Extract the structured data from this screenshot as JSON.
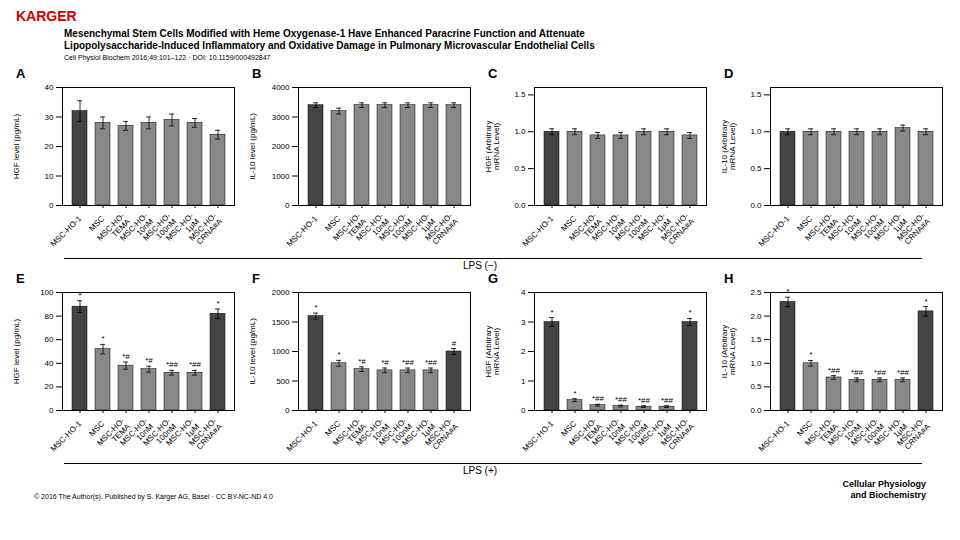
{
  "title": "Mesenchymal Stem Cells Modified with Heme Oxygenase-1 Have Enhanced Paracrine Function and Attenuate\nLipopolysaccharide-Induced Inflammatory and Oxidative Damage in Pulmonary Microvascular Endothelial Cells",
  "subtitle": "Cell Physiol Biochem 2016;49:101–122 · DOI: 10.1159/000492847",
  "annotations": [
    {
      "text": "KARGER",
      "color": "#cc0000"
    },
    {
      "text": "© 2016 The Author(s). Published by S. Karger AG, Basel · CC BY-NC-ND 4.0"
    },
    {
      "text": "Cellular Physiology\nand Biochemistry"
    },
    {
      "text": "LPS (−)"
    },
    {
      "text": "LPS (+)"
    }
  ],
  "chart_data": [
    {
      "type": "bar",
      "title": "A",
      "categories": [
        "MSC-HO-1",
        "MSC",
        "MSC-HO-\nTEMA",
        "MSC-HO-\n10nM",
        "MSC-HO-\n100nM",
        "MSC-HO-\n1μM",
        "MSC-HO-\nCRNA#A"
      ],
      "values": [
        32,
        28,
        27,
        28,
        29,
        28,
        24
      ],
      "errors": [
        3.5,
        2,
        1.5,
        2,
        2,
        1.5,
        1.5
      ],
      "colors": [
        "#444444",
        "#888888",
        "#888888",
        "#888888",
        "#888888",
        "#888888",
        "#888888"
      ],
      "ylabel": "HGF level (pg/mL)",
      "ylim": [
        0,
        40
      ],
      "yticks": [
        0,
        10,
        20,
        30,
        40
      ],
      "grid": false
    },
    {
      "type": "bar",
      "title": "B",
      "categories": [
        "MSC-HO-1",
        "MSC",
        "MSC-HO-\nTEMA",
        "MSC-HO-\n10nM",
        "MSC-HO-\n100nM",
        "MSC-HO-\n1μM",
        "MSC-HO-\nCRNA#A"
      ],
      "values": [
        3400,
        3200,
        3400,
        3400,
        3400,
        3400,
        3400
      ],
      "errors": [
        80,
        100,
        80,
        80,
        80,
        80,
        80
      ],
      "colors": [
        "#444444",
        "#888888",
        "#888888",
        "#888888",
        "#888888",
        "#888888",
        "#888888"
      ],
      "ylabel": "IL-10 level (pg/mL)",
      "ylim": [
        0,
        4000
      ],
      "yticks": [
        0,
        1000,
        2000,
        3000,
        4000
      ],
      "grid": false
    },
    {
      "type": "bar",
      "title": "C",
      "categories": [
        "MSC-HO-1",
        "MSC",
        "MSC-HO-\nTEMA",
        "MSC-HO-\n10nM",
        "MSC-HO-\n100nM",
        "MSC-HO-\n1μM",
        "MSC-HO-\nCRNA#A"
      ],
      "values": [
        1.0,
        1.0,
        0.95,
        0.95,
        1.0,
        1.0,
        0.95
      ],
      "errors": [
        0.04,
        0.04,
        0.04,
        0.04,
        0.04,
        0.04,
        0.04
      ],
      "colors": [
        "#444444",
        "#888888",
        "#888888",
        "#888888",
        "#888888",
        "#888888",
        "#888888"
      ],
      "ylabel": "HGF (Arbitrary\nmRNA Level)",
      "ylim": [
        0.0,
        1.6
      ],
      "yticks": [
        {
          "value": 0,
          "label": "0.0"
        },
        0.5,
        {
          "value": 1,
          "label": "1.0"
        },
        1.5
      ],
      "grid": false
    },
    {
      "type": "bar",
      "title": "D",
      "categories": [
        "MSC-HO-1",
        "MSC",
        "MSC-HO-\nTEMA",
        "MSC-HO-\n10nM",
        "MSC-HO-\n100nM",
        "MSC-HO-\n1μM",
        "MSC-HO-\nCRNA#A"
      ],
      "values": [
        1.0,
        1.0,
        1.0,
        1.0,
        1.0,
        1.05,
        1.0
      ],
      "errors": [
        0.04,
        0.04,
        0.04,
        0.04,
        0.04,
        0.04,
        0.04
      ],
      "colors": [
        "#444444",
        "#888888",
        "#888888",
        "#888888",
        "#888888",
        "#888888",
        "#888888"
      ],
      "ylabel": "IL-10 (Arbitrary\nmRNA Level)",
      "ylim": [
        0.0,
        1.6
      ],
      "yticks": [
        {
          "value": 0,
          "label": "0.0"
        },
        0.5,
        {
          "value": 1,
          "label": "1.0"
        },
        1.5
      ],
      "grid": false
    },
    {
      "type": "bar",
      "title": "E",
      "categories": [
        "MSC-HO-1",
        "MSC",
        "MSC-HO-\nTEMA",
        "MSC-HO-\n10nM",
        "MSC-HO-\n100nM",
        "MSC-HO-\n1μM",
        "MSC-HO-\nCRNA#A"
      ],
      "values": [
        88,
        52,
        38,
        35,
        32,
        32,
        82
      ],
      "errors": [
        5,
        4,
        3,
        2.5,
        2,
        2,
        4
      ],
      "colors": [
        "#444444",
        "#888888",
        "#888888",
        "#888888",
        "#888888",
        "#888888",
        "#444444"
      ],
      "ylabel": "HGF level (pg/mL)",
      "ylim": [
        0,
        100
      ],
      "yticks": [
        0,
        20,
        40,
        60,
        80,
        100
      ],
      "grid": false,
      "annotations": [
        "*",
        "*",
        "*#",
        "*#",
        "*##",
        "*##",
        "*"
      ]
    },
    {
      "type": "bar",
      "title": "F",
      "categories": [
        "MSC-HO-1",
        "MSC",
        "MSC-HO-\nTEMA",
        "MSC-HO-\n10nM",
        "MSC-HO-\n100nM",
        "MSC-HO-\n1μM",
        "MSC-HO-\nCRNA#A"
      ],
      "values": [
        1600,
        800,
        700,
        680,
        680,
        680,
        1000
      ],
      "errors": [
        50,
        50,
        40,
        40,
        40,
        40,
        50
      ],
      "colors": [
        "#444444",
        "#888888",
        "#888888",
        "#888888",
        "#888888",
        "#888888",
        "#444444"
      ],
      "ylabel": "IL-10 level (pg/mL)",
      "ylim": [
        0,
        2000
      ],
      "yticks": [
        0,
        500,
        1000,
        1500,
        2000
      ],
      "grid": false,
      "annotations": [
        "*",
        "*",
        "*#",
        "*#",
        "*##",
        "*##",
        "#"
      ]
    },
    {
      "type": "bar",
      "title": "G",
      "categories": [
        "MSC-HO-1",
        "MSC",
        "MSC-HO-\nTEMA",
        "MSC-HO-\n10nM",
        "MSC-HO-\n100nM",
        "MSC-HO-\n1μM",
        "MSC-HO-\nCRNA#A"
      ],
      "values": [
        3.0,
        0.35,
        0.18,
        0.15,
        0.13,
        0.13,
        3.0
      ],
      "errors": [
        0.15,
        0.05,
        0.03,
        0.03,
        0.03,
        0.03,
        0.12
      ],
      "colors": [
        "#444444",
        "#888888",
        "#888888",
        "#888888",
        "#888888",
        "#888888",
        "#444444"
      ],
      "ylabel": "HGF (Arbitrary\nmRNA Level)",
      "ylim": [
        0,
        4
      ],
      "yticks": [
        0,
        1,
        2,
        3,
        4
      ],
      "grid": false,
      "annotations": [
        "*",
        "*",
        "*##",
        "*##",
        "*##",
        "*##",
        "*"
      ]
    },
    {
      "type": "bar",
      "title": "H",
      "categories": [
        "MSC-HO-1",
        "MSC",
        "MSC-HO-\nTEMA",
        "MSC-HO-\n10nM",
        "MSC-HO-\n100nM",
        "MSC-HO-\n1μM",
        "MSC-HO-\nCRNA#A"
      ],
      "values": [
        2.3,
        1.0,
        0.7,
        0.65,
        0.65,
        0.65,
        2.1
      ],
      "errors": [
        0.1,
        0.06,
        0.04,
        0.04,
        0.04,
        0.04,
        0.1
      ],
      "colors": [
        "#444444",
        "#888888",
        "#888888",
        "#888888",
        "#888888",
        "#888888",
        "#444444"
      ],
      "ylabel": "IL-10 (Arbitrary\nmRNA Level)",
      "ylim": [
        0.0,
        2.5
      ],
      "yticks": [
        {
          "value": 0,
          "label": "0.0"
        },
        0.5,
        {
          "value": 1,
          "label": "1.0"
        },
        1.5,
        {
          "value": 2,
          "label": "2.0"
        },
        2.5
      ],
      "grid": false,
      "annotations": [
        "*",
        "*",
        "*##",
        "*##",
        "*##",
        "*##",
        "*"
      ]
    }
  ]
}
